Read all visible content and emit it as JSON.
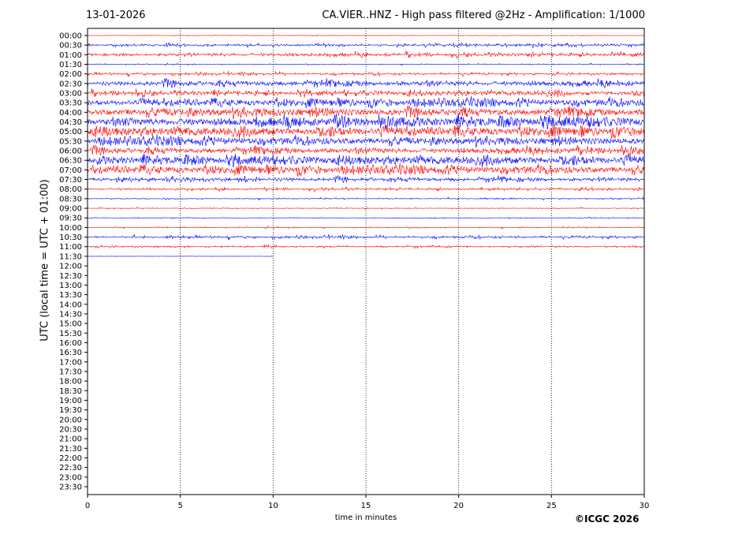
{
  "header": {
    "date": "13-01-2026",
    "title": "CA.VIER..HNZ - High pass filtered @2Hz - Amplification: 1/1000"
  },
  "footer": {
    "copyright": "©ICGC 2026"
  },
  "chart_data": {
    "type": "line",
    "title": "CA.VIER..HNZ - High pass filtered @2Hz - Amplification: 1/1000",
    "xlabel": "time in minutes",
    "ylabel": "UTC (local time = UTC + 01:00)",
    "xlim": [
      0,
      30
    ],
    "xticks": [
      0,
      5,
      10,
      15,
      20,
      25,
      30
    ],
    "grid": "vertical dotted at 5-minute ticks",
    "colors": [
      "#ff0000",
      "#0000ff"
    ],
    "rows": [
      "00:00",
      "00:30",
      "01:00",
      "01:30",
      "02:00",
      "02:30",
      "03:00",
      "03:30",
      "04:00",
      "04:30",
      "05:00",
      "05:30",
      "06:00",
      "06:30",
      "07:00",
      "07:30",
      "08:00",
      "08:30",
      "09:00",
      "09:30",
      "10:00",
      "10:30",
      "11:00",
      "11:30",
      "12:00",
      "12:30",
      "13:00",
      "13:30",
      "14:00",
      "14:30",
      "15:00",
      "15:30",
      "16:00",
      "16:30",
      "17:00",
      "17:30",
      "18:00",
      "18:30",
      "19:00",
      "19:30",
      "20:00",
      "20:30",
      "21:00",
      "21:30",
      "22:00",
      "22:30",
      "23:00",
      "23:30"
    ],
    "trace_colors": [
      "#ff0000",
      "#0000ff",
      "#ff0000",
      "#0000ff",
      "#ff0000",
      "#0000ff",
      "#ff0000",
      "#0000ff",
      "#ff0000",
      "#0000ff",
      "#ff0000",
      "#0000ff",
      "#ff0000",
      "#0000ff",
      "#ff0000",
      "#0000ff",
      "#ff0000",
      "#0000ff",
      "#ff0000",
      "#0000ff",
      "#ff0000",
      "#0000ff",
      "#ff0000",
      "#0000ff"
    ],
    "trace_activity": [
      0.05,
      0.35,
      0.45,
      0.12,
      0.3,
      0.65,
      0.55,
      0.75,
      0.85,
      0.95,
      0.9,
      0.8,
      0.7,
      0.85,
      0.8,
      0.5,
      0.3,
      0.15,
      0.12,
      0.1,
      0.15,
      0.3,
      0.25,
      0.03
    ],
    "trace_end_minutes": [
      30,
      30,
      30,
      30,
      30,
      30,
      30,
      30,
      30,
      30,
      30,
      30,
      30,
      30,
      30,
      30,
      30,
      30,
      30,
      30,
      30,
      30,
      30,
      10
    ]
  }
}
